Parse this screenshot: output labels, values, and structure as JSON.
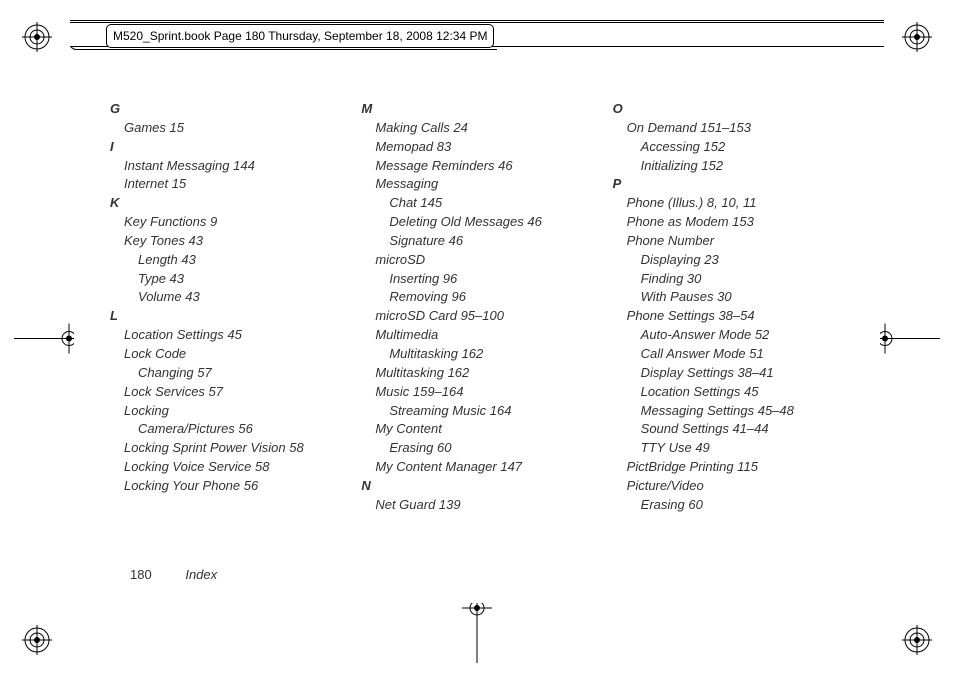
{
  "header": {
    "text": "M520_Sprint.book  Page 180  Thursday, September 18, 2008  12:34 PM"
  },
  "footer": {
    "page": "180",
    "label": "Index"
  },
  "columns": [
    [
      {
        "t": "letter",
        "v": "G"
      },
      {
        "t": "lvl1",
        "v": "Games 15"
      },
      {
        "t": "letter",
        "v": "I"
      },
      {
        "t": "lvl1",
        "v": "Instant Messaging 144"
      },
      {
        "t": "lvl1",
        "v": "Internet 15"
      },
      {
        "t": "letter",
        "v": "K"
      },
      {
        "t": "lvl1",
        "v": "Key Functions 9"
      },
      {
        "t": "lvl1",
        "v": "Key Tones 43"
      },
      {
        "t": "lvl2",
        "v": "Length 43"
      },
      {
        "t": "lvl2",
        "v": "Type 43"
      },
      {
        "t": "lvl2",
        "v": "Volume 43"
      },
      {
        "t": "letter",
        "v": "L"
      },
      {
        "t": "lvl1",
        "v": "Location Settings 45"
      },
      {
        "t": "lvl1",
        "v": "Lock Code"
      },
      {
        "t": "lvl2",
        "v": "Changing 57"
      },
      {
        "t": "lvl1",
        "v": "Lock Services 57"
      },
      {
        "t": "lvl1",
        "v": "Locking"
      },
      {
        "t": "lvl2",
        "v": "Camera/Pictures 56"
      },
      {
        "t": "lvl1",
        "v": "Locking Sprint Power Vision 58"
      },
      {
        "t": "lvl1",
        "v": "Locking Voice Service 58"
      },
      {
        "t": "lvl1",
        "v": "Locking Your Phone 56"
      }
    ],
    [
      {
        "t": "letter",
        "v": "M"
      },
      {
        "t": "lvl1",
        "v": "Making Calls 24"
      },
      {
        "t": "lvl1",
        "v": "Memopad 83"
      },
      {
        "t": "lvl1",
        "v": "Message Reminders 46"
      },
      {
        "t": "lvl1",
        "v": "Messaging"
      },
      {
        "t": "lvl2",
        "v": "Chat 145"
      },
      {
        "t": "lvl2",
        "v": "Deleting Old Messages 46"
      },
      {
        "t": "lvl2",
        "v": "Signature 46"
      },
      {
        "t": "lvl1",
        "v": "microSD"
      },
      {
        "t": "lvl2",
        "v": "Inserting 96"
      },
      {
        "t": "lvl2",
        "v": "Removing 96"
      },
      {
        "t": "lvl1",
        "v": "microSD Card 95–100"
      },
      {
        "t": "lvl1",
        "v": "Multimedia"
      },
      {
        "t": "lvl2",
        "v": "Multitasking 162"
      },
      {
        "t": "lvl1",
        "v": "Multitasking 162"
      },
      {
        "t": "lvl1",
        "v": "Music 159–164"
      },
      {
        "t": "lvl2",
        "v": "Streaming Music 164"
      },
      {
        "t": "lvl1",
        "v": "My Content"
      },
      {
        "t": "lvl2",
        "v": "Erasing 60"
      },
      {
        "t": "lvl1",
        "v": "My Content Manager 147"
      },
      {
        "t": "letter",
        "v": "N"
      },
      {
        "t": "lvl1",
        "v": "Net Guard 139"
      }
    ],
    [
      {
        "t": "letter",
        "v": "O"
      },
      {
        "t": "lvl1",
        "v": "On Demand 151–153"
      },
      {
        "t": "lvl2",
        "v": "Accessing 152"
      },
      {
        "t": "lvl2",
        "v": "Initializing 152"
      },
      {
        "t": "letter",
        "v": "P"
      },
      {
        "t": "lvl1",
        "v": "Phone (Illus.) 8, 10, 11"
      },
      {
        "t": "lvl1",
        "v": "Phone as Modem 153"
      },
      {
        "t": "lvl1",
        "v": "Phone Number"
      },
      {
        "t": "lvl2",
        "v": "Displaying 23"
      },
      {
        "t": "lvl2",
        "v": "Finding 30"
      },
      {
        "t": "lvl2",
        "v": "With Pauses 30"
      },
      {
        "t": "lvl1",
        "v": "Phone Settings 38–54"
      },
      {
        "t": "lvl2",
        "v": "Auto-Answer Mode 52"
      },
      {
        "t": "lvl2",
        "v": "Call Answer Mode 51"
      },
      {
        "t": "lvl2",
        "v": "Display Settings 38–41"
      },
      {
        "t": "lvl2",
        "v": "Location Settings 45"
      },
      {
        "t": "lvl2",
        "v": "Messaging Settings 45–48"
      },
      {
        "t": "lvl2",
        "v": "Sound Settings 41–44"
      },
      {
        "t": "lvl2",
        "v": "TTY Use 49"
      },
      {
        "t": "lvl1",
        "v": "PictBridge Printing 115"
      },
      {
        "t": "lvl1",
        "v": "Picture/Video"
      },
      {
        "t": "lvl2",
        "v": "Erasing 60"
      }
    ]
  ]
}
